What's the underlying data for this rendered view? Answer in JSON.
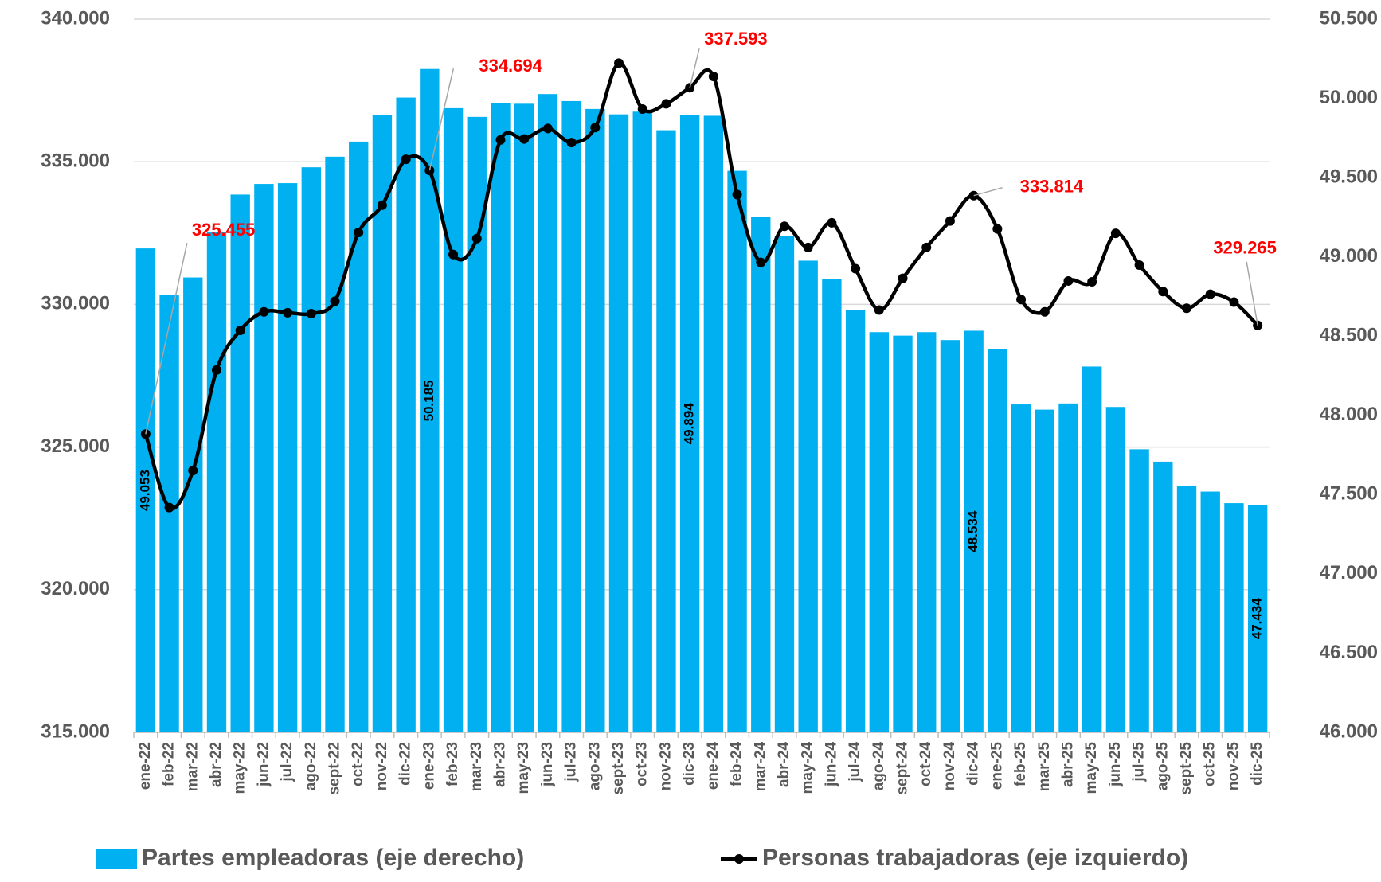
{
  "chart_data": {
    "type": "bar_line",
    "categories": [
      "ene-22",
      "feb-22",
      "mar-22",
      "abr-22",
      "may-22",
      "jun-22",
      "jul-22",
      "ago-22",
      "sept-22",
      "oct-22",
      "nov-22",
      "dic-22",
      "ene-23",
      "feb-23",
      "mar-23",
      "abr-23",
      "may-23",
      "jun-23",
      "jul-23",
      "ago-23",
      "sept-23",
      "oct-23",
      "nov-23",
      "dic-23",
      "ene-24",
      "feb-24",
      "mar-24",
      "abr-24",
      "may-24",
      "jun-24",
      "jul-24",
      "ago-24",
      "sept-24",
      "oct-24",
      "nov-24",
      "dic-24",
      "ene-25",
      "feb-25",
      "mar-25",
      "abr-25",
      "may-25",
      "jun-25",
      "jul-25",
      "ago-25",
      "sept-25",
      "oct-25",
      "nov-25",
      "dic-25"
    ],
    "series": [
      {
        "name": "Partes empleadoras (eje derecho)",
        "type": "bar",
        "axis": "y2",
        "color": "#00b0f0",
        "values": [
          49053,
          48759,
          48870,
          49154,
          49393,
          49460,
          49465,
          49565,
          49632,
          49727,
          49894,
          50005,
          50185,
          49938,
          49883,
          49972,
          49966,
          50027,
          49983,
          49933,
          49899,
          49916,
          49799,
          49894,
          49890,
          49543,
          49254,
          49132,
          48976,
          48859,
          48664,
          48525,
          48503,
          48525,
          48475,
          48534,
          48420,
          48069,
          48036,
          48075,
          48308,
          48053,
          47786,
          47708,
          47557,
          47519,
          47446,
          47434
        ],
        "value_labels": [
          "49.053",
          null,
          null,
          null,
          null,
          null,
          null,
          null,
          null,
          null,
          null,
          null,
          "50.185",
          null,
          null,
          null,
          null,
          null,
          null,
          null,
          null,
          null,
          null,
          "49.894",
          null,
          null,
          null,
          null,
          null,
          null,
          null,
          null,
          null,
          null,
          null,
          "48.534",
          null,
          null,
          null,
          null,
          null,
          null,
          null,
          null,
          null,
          null,
          null,
          "47.434"
        ]
      },
      {
        "name": "Personas trabajadoras (eje izquierdo)",
        "type": "line",
        "axis": "y",
        "color": "#000000",
        "values": [
          325455,
          322880,
          324178,
          327701,
          329091,
          329740,
          329709,
          329678,
          330111,
          332521,
          333479,
          335086,
          334694,
          331749,
          332305,
          335766,
          335797,
          336168,
          335673,
          336199,
          338455,
          336848,
          337033,
          337593,
          337991,
          333850,
          331471,
          332738,
          331996,
          332861,
          331254,
          329802,
          330914,
          331996,
          332923,
          333814,
          332645,
          330173,
          329740,
          330822,
          330791,
          332491,
          331378,
          330451,
          329864,
          330358,
          330080,
          329265
        ],
        "value_labels": [
          "325.455",
          null,
          null,
          null,
          null,
          null,
          null,
          null,
          null,
          null,
          null,
          null,
          "334.694",
          null,
          null,
          null,
          null,
          null,
          null,
          null,
          null,
          null,
          null,
          "337.593",
          null,
          null,
          null,
          null,
          null,
          null,
          null,
          null,
          null,
          null,
          null,
          "333.814",
          null,
          null,
          null,
          null,
          null,
          null,
          null,
          null,
          null,
          null,
          null,
          "329.265"
        ]
      }
    ],
    "ylim": [
      315000,
      340000
    ],
    "yticks": [
      {
        "value": 315000,
        "label": "315.000"
      },
      {
        "value": 320000,
        "label": "320.000"
      },
      {
        "value": 325000,
        "label": "325.000"
      },
      {
        "value": 330000,
        "label": "330.000"
      },
      {
        "value": 335000,
        "label": "335.000"
      },
      {
        "value": 340000,
        "label": "340.000"
      }
    ],
    "y2lim": [
      46000,
      50500
    ],
    "y2ticks": [
      {
        "value": 46000,
        "label": "46.000"
      },
      {
        "value": 46500,
        "label": "46.500"
      },
      {
        "value": 47000,
        "label": "47.000"
      },
      {
        "value": 47500,
        "label": "47.500"
      },
      {
        "value": 48000,
        "label": "48.000"
      },
      {
        "value": 48500,
        "label": "48.500"
      },
      {
        "value": 49000,
        "label": "49.000"
      },
      {
        "value": 49500,
        "label": "49.500"
      },
      {
        "value": 50000,
        "label": "50.000"
      },
      {
        "value": 50500,
        "label": "50.500"
      }
    ],
    "grid": true,
    "legend": "bottom"
  }
}
